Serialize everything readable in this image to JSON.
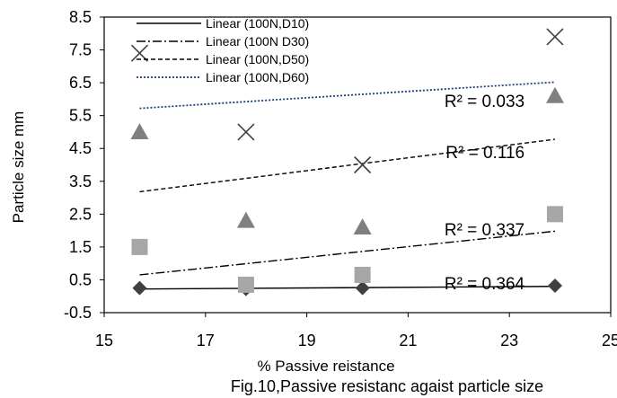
{
  "chart_data": {
    "type": "scatter",
    "title": "",
    "xlabel": "% Passive reistance",
    "ylabel": "Particle size mm",
    "caption": "Fig.10,Passive resistanc agaist particle size",
    "xlim": [
      15,
      25
    ],
    "ylim": [
      -0.5,
      8.5
    ],
    "xticks": [
      15,
      17,
      19,
      21,
      23,
      25
    ],
    "yticks": [
      -0.5,
      0.5,
      1.5,
      2.5,
      3.5,
      4.5,
      5.5,
      6.5,
      7.5,
      8.5
    ],
    "xtick_labels": [
      "15",
      "17",
      "19",
      "21",
      "23",
      "25"
    ],
    "ytick_labels": [
      "-0.5",
      "0.5",
      "1.5",
      "2.5",
      "3.5",
      "4.5",
      "5.5",
      "6.5",
      "7.5",
      "8.5"
    ],
    "grid": false,
    "legend_position": "top-left",
    "series": [
      {
        "marker": "diamond",
        "color": "#404040",
        "x": [
          15.7,
          17.8,
          20.1,
          23.9
        ],
        "y": [
          0.25,
          0.22,
          0.25,
          0.32
        ],
        "trend": {
          "name": "Linear (100N,D10)",
          "style": "solid",
          "color": "#000000",
          "x": [
            15.7,
            23.9
          ],
          "y": [
            0.22,
            0.3
          ]
        },
        "r2": "R² = 0.364",
        "r2_at": [
          23.3,
          0.4
        ]
      },
      {
        "marker": "square",
        "color": "#a6a6a6",
        "x": [
          15.7,
          17.8,
          20.1,
          23.9
        ],
        "y": [
          1.5,
          0.35,
          0.65,
          2.5
        ],
        "trend": {
          "name": "Linear (100N D30)",
          "style": "dashdot",
          "color": "#000000",
          "x": [
            15.7,
            23.9
          ],
          "y": [
            0.65,
            1.98
          ]
        },
        "r2": "R² = 0.337",
        "r2_at": [
          23.3,
          2.05
        ]
      },
      {
        "marker": "triangle",
        "color": "#808080",
        "x": [
          15.7,
          17.8,
          20.1,
          23.9
        ],
        "y": [
          5.0,
          2.3,
          2.1,
          6.1
        ],
        "trend": {
          "name": "Linear (100N,D50)",
          "style": "dashed",
          "color": "#000000",
          "x": [
            15.7,
            23.9
          ],
          "y": [
            3.18,
            4.78
          ]
        },
        "r2": "R² = 0.116",
        "r2_at": [
          23.3,
          4.4
        ]
      },
      {
        "marker": "x",
        "color": "#404040",
        "x": [
          15.7,
          17.8,
          20.1,
          23.9
        ],
        "y": [
          7.4,
          5.0,
          4.0,
          7.9
        ],
        "trend": {
          "name": "Linear (100N,D60)",
          "style": "dotted",
          "color": "#1f3d7a",
          "x": [
            15.7,
            23.9
          ],
          "y": [
            5.72,
            6.52
          ]
        },
        "r2": "R² = 0.033",
        "r2_at": [
          23.3,
          5.95
        ]
      }
    ]
  }
}
